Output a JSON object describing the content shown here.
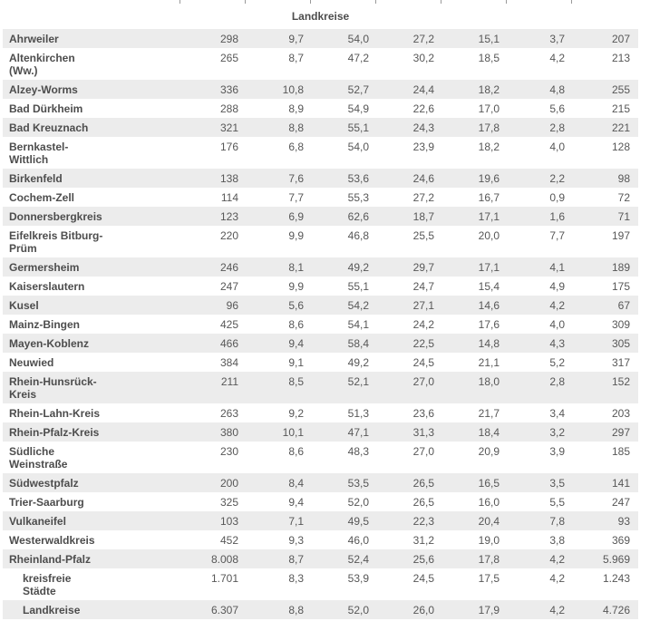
{
  "colors": {
    "row_alt_bg": "#ececec",
    "label_text": "#4d4d4d",
    "value_text": "#575757",
    "divider": "#9a9a9a"
  },
  "chart_data": {
    "type": "table",
    "group_header": "Landkreise",
    "rows": [
      {
        "label": "Ahrweiler",
        "indent": false,
        "values": [
          "298",
          "9,7",
          "54,0",
          "27,2",
          "15,1",
          "3,7",
          "207"
        ]
      },
      {
        "label": "Altenkirchen\n(Ww.)",
        "indent": false,
        "values": [
          "265",
          "8,7",
          "47,2",
          "30,2",
          "18,5",
          "4,2",
          "213"
        ]
      },
      {
        "label": "Alzey-Worms",
        "indent": false,
        "values": [
          "336",
          "10,8",
          "52,7",
          "24,4",
          "18,2",
          "4,8",
          "255"
        ]
      },
      {
        "label": "Bad Dürkheim",
        "indent": false,
        "values": [
          "288",
          "8,9",
          "54,9",
          "22,6",
          "17,0",
          "5,6",
          "215"
        ]
      },
      {
        "label": "Bad Kreuznach",
        "indent": false,
        "values": [
          "321",
          "8,8",
          "55,1",
          "24,3",
          "17,8",
          "2,8",
          "221"
        ]
      },
      {
        "label": "Bernkastel-\nWittlich",
        "indent": false,
        "values": [
          "176",
          "6,8",
          "54,0",
          "23,9",
          "18,2",
          "4,0",
          "128"
        ]
      },
      {
        "label": "Birkenfeld",
        "indent": false,
        "values": [
          "138",
          "7,6",
          "53,6",
          "24,6",
          "19,6",
          "2,2",
          "98"
        ]
      },
      {
        "label": "Cochem-Zell",
        "indent": false,
        "values": [
          "114",
          "7,7",
          "55,3",
          "27,2",
          "16,7",
          "0,9",
          "72"
        ]
      },
      {
        "label": "Donnersbergkreis",
        "indent": false,
        "values": [
          "123",
          "6,9",
          "62,6",
          "18,7",
          "17,1",
          "1,6",
          "71"
        ]
      },
      {
        "label": "Eifelkreis Bitburg-\nPrüm",
        "indent": false,
        "values": [
          "220",
          "9,9",
          "46,8",
          "25,5",
          "20,0",
          "7,7",
          "197"
        ]
      },
      {
        "label": "Germersheim",
        "indent": false,
        "values": [
          "246",
          "8,1",
          "49,2",
          "29,7",
          "17,1",
          "4,1",
          "189"
        ]
      },
      {
        "label": "Kaiserslautern",
        "indent": false,
        "values": [
          "247",
          "9,9",
          "55,1",
          "24,7",
          "15,4",
          "4,9",
          "175"
        ]
      },
      {
        "label": "Kusel",
        "indent": false,
        "values": [
          "96",
          "5,6",
          "54,2",
          "27,1",
          "14,6",
          "4,2",
          "67"
        ]
      },
      {
        "label": "Mainz-Bingen",
        "indent": false,
        "values": [
          "425",
          "8,6",
          "54,1",
          "24,2",
          "17,6",
          "4,0",
          "309"
        ]
      },
      {
        "label": "Mayen-Koblenz",
        "indent": false,
        "values": [
          "466",
          "9,4",
          "58,4",
          "22,5",
          "14,8",
          "4,3",
          "305"
        ]
      },
      {
        "label": "Neuwied",
        "indent": false,
        "values": [
          "384",
          "9,1",
          "49,2",
          "24,5",
          "21,1",
          "5,2",
          "317"
        ]
      },
      {
        "label": "Rhein-Hunsrück-\nKreis",
        "indent": false,
        "values": [
          "211",
          "8,5",
          "52,1",
          "27,0",
          "18,0",
          "2,8",
          "152"
        ]
      },
      {
        "label": "Rhein-Lahn-Kreis",
        "indent": false,
        "values": [
          "263",
          "9,2",
          "51,3",
          "23,6",
          "21,7",
          "3,4",
          "203"
        ]
      },
      {
        "label": "Rhein-Pfalz-Kreis",
        "indent": false,
        "values": [
          "380",
          "10,1",
          "47,1",
          "31,3",
          "18,4",
          "3,2",
          "297"
        ]
      },
      {
        "label": "Südliche\nWeinstraße",
        "indent": false,
        "values": [
          "230",
          "8,6",
          "48,3",
          "27,0",
          "20,9",
          "3,9",
          "185"
        ]
      },
      {
        "label": "Südwestpfalz",
        "indent": false,
        "values": [
          "200",
          "8,4",
          "53,5",
          "26,5",
          "16,5",
          "3,5",
          "141"
        ]
      },
      {
        "label": "Trier-Saarburg",
        "indent": false,
        "values": [
          "325",
          "9,4",
          "52,0",
          "26,5",
          "16,0",
          "5,5",
          "247"
        ]
      },
      {
        "label": "Vulkaneifel",
        "indent": false,
        "values": [
          "103",
          "7,1",
          "49,5",
          "22,3",
          "20,4",
          "7,8",
          "93"
        ]
      },
      {
        "label": "Westerwaldkreis",
        "indent": false,
        "values": [
          "452",
          "9,3",
          "46,0",
          "31,2",
          "19,0",
          "3,8",
          "369"
        ]
      },
      {
        "label": "Rheinland-Pfalz",
        "indent": false,
        "values": [
          "8.008",
          "8,7",
          "52,4",
          "25,6",
          "17,8",
          "4,2",
          "5.969"
        ]
      },
      {
        "label": "kreisfreie\nStädte",
        "indent": true,
        "values": [
          "1.701",
          "8,3",
          "53,9",
          "24,5",
          "17,5",
          "4,2",
          "1.243"
        ]
      },
      {
        "label": "Landkreise",
        "indent": true,
        "values": [
          "6.307",
          "8,8",
          "52,0",
          "26,0",
          "17,9",
          "4,2",
          "4.726"
        ]
      }
    ]
  }
}
